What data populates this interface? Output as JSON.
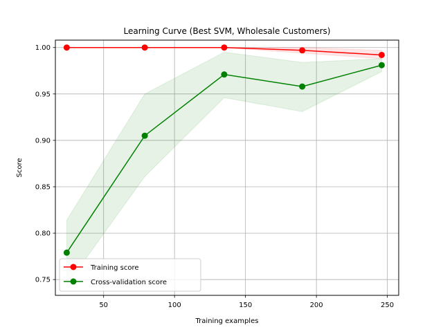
{
  "chart_data": {
    "type": "line",
    "title": "Learning Curve (Best SVM, Wholesale Customers)",
    "xlabel": "Training examples",
    "ylabel": "Score",
    "xlim": [
      16,
      258
    ],
    "ylim": [
      0.733,
      1.008
    ],
    "xticks": [
      50,
      100,
      150,
      200,
      250
    ],
    "yticks": [
      0.75,
      0.8,
      0.85,
      0.9,
      0.95,
      1.0
    ],
    "grid": true,
    "legend_position": "lower-left",
    "x": [
      24,
      79,
      135,
      190,
      246
    ],
    "series": [
      {
        "name": "Training score",
        "color": "#ff0000",
        "values": [
          1.0,
          1.0,
          1.0,
          0.997,
          0.992
        ],
        "band_lower": [
          1.0,
          1.0,
          1.0,
          0.994,
          0.988
        ],
        "band_upper": [
          1.0,
          1.0,
          1.0,
          1.0,
          0.997
        ]
      },
      {
        "name": "Cross-validation score",
        "color": "#008000",
        "values": [
          0.779,
          0.905,
          0.971,
          0.958,
          0.981
        ],
        "band_lower": [
          0.744,
          0.861,
          0.946,
          0.931,
          0.974
        ],
        "band_upper": [
          0.814,
          0.95,
          0.995,
          0.984,
          0.988
        ]
      }
    ]
  }
}
